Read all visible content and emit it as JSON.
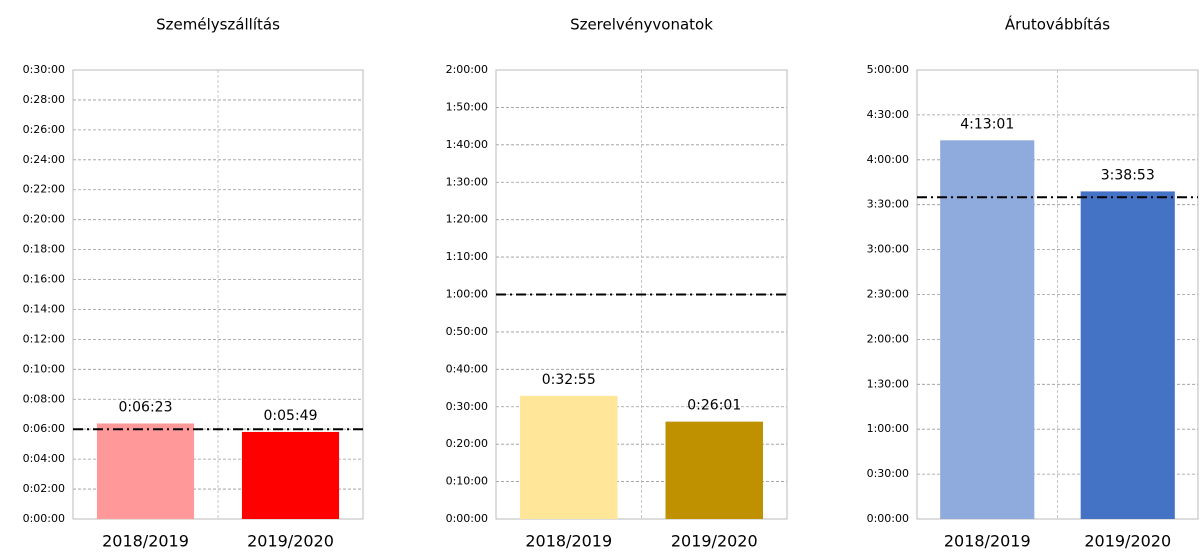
{
  "chart_data": [
    {
      "type": "bar",
      "title": "Személyszállítás",
      "categories": [
        "2018/2019",
        "2019/2020"
      ],
      "values": [
        383,
        349
      ],
      "value_labels": [
        "0:06:23",
        "0:05:49"
      ],
      "colors": [
        "#ff9999",
        "#ff0000"
      ],
      "reference_line": 360,
      "grid": true,
      "ylim": [
        0,
        1800
      ],
      "yticks": [
        {
          "value": 0,
          "label": "0:00:00"
        },
        {
          "value": 120,
          "label": "0:02:00"
        },
        {
          "value": 240,
          "label": "0:04:00"
        },
        {
          "value": 360,
          "label": "0:06:00"
        },
        {
          "value": 480,
          "label": "0:08:00"
        },
        {
          "value": 600,
          "label": "0:10:00"
        },
        {
          "value": 720,
          "label": "0:12:00"
        },
        {
          "value": 840,
          "label": "0:14:00"
        },
        {
          "value": 960,
          "label": "0:16:00"
        },
        {
          "value": 1080,
          "label": "0:18:00"
        },
        {
          "value": 1200,
          "label": "0:20:00"
        },
        {
          "value": 1320,
          "label": "0:22:00"
        },
        {
          "value": 1440,
          "label": "0:24:00"
        },
        {
          "value": 1560,
          "label": "0:26:00"
        },
        {
          "value": 1680,
          "label": "0:28:00"
        },
        {
          "value": 1800,
          "label": "0:30:00"
        }
      ]
    },
    {
      "type": "bar",
      "title": "Szerelvényvonatok",
      "categories": [
        "2018/2019",
        "2019/2020"
      ],
      "values": [
        1975,
        1561
      ],
      "value_labels": [
        "0:32:55",
        "0:26:01"
      ],
      "colors": [
        "#ffe699",
        "#bf9000"
      ],
      "reference_line": 3600,
      "grid": true,
      "ylim": [
        0,
        7200
      ],
      "yticks": [
        {
          "value": 0,
          "label": "0:00:00"
        },
        {
          "value": 600,
          "label": "0:10:00"
        },
        {
          "value": 1200,
          "label": "0:20:00"
        },
        {
          "value": 1800,
          "label": "0:30:00"
        },
        {
          "value": 2400,
          "label": "0:40:00"
        },
        {
          "value": 3000,
          "label": "0:50:00"
        },
        {
          "value": 3600,
          "label": "1:00:00"
        },
        {
          "value": 4200,
          "label": "1:10:00"
        },
        {
          "value": 4800,
          "label": "1:20:00"
        },
        {
          "value": 5400,
          "label": "1:30:00"
        },
        {
          "value": 6000,
          "label": "1:40:00"
        },
        {
          "value": 6600,
          "label": "1:50:00"
        },
        {
          "value": 7200,
          "label": "2:00:00"
        }
      ]
    },
    {
      "type": "bar",
      "title": "Árutovábbítás",
      "categories": [
        "2018/2019",
        "2019/2020"
      ],
      "values": [
        15181,
        13133
      ],
      "value_labels": [
        "4:13:01",
        "3:38:53"
      ],
      "colors": [
        "#8faadc",
        "#4472c4"
      ],
      "reference_line": 12900,
      "grid": true,
      "ylim": [
        0,
        18000
      ],
      "yticks": [
        {
          "value": 0,
          "label": "0:00:00"
        },
        {
          "value": 1800,
          "label": "0:30:00"
        },
        {
          "value": 3600,
          "label": "1:00:00"
        },
        {
          "value": 5400,
          "label": "1:30:00"
        },
        {
          "value": 7200,
          "label": "2:00:00"
        },
        {
          "value": 9000,
          "label": "2:30:00"
        },
        {
          "value": 10800,
          "label": "3:00:00"
        },
        {
          "value": 12600,
          "label": "3:30:00"
        },
        {
          "value": 14400,
          "label": "4:00:00"
        },
        {
          "value": 16200,
          "label": "4:30:00"
        },
        {
          "value": 18000,
          "label": "5:00:00"
        }
      ]
    }
  ]
}
